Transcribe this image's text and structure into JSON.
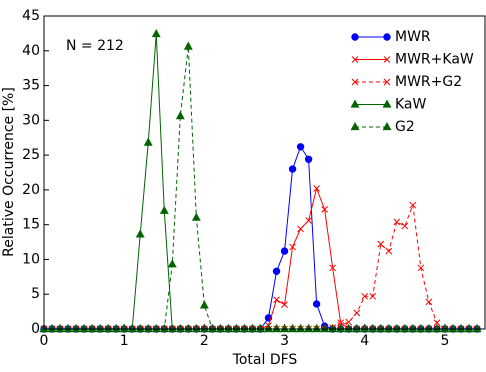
{
  "chart_data": {
    "type": "line",
    "xlabel": "Total DFS",
    "ylabel": "Relative Occurrence [%]",
    "annotation": "N = 212",
    "xlim": [
      0,
      5.5
    ],
    "ylim": [
      0,
      45
    ],
    "xticks": [
      0,
      1,
      2,
      3,
      4,
      5
    ],
    "yticks": [
      0,
      5,
      10,
      15,
      20,
      25,
      30,
      35,
      40,
      45
    ],
    "grid": false,
    "legend": "upper right",
    "x": [
      0,
      0.1,
      0.2,
      0.3,
      0.4,
      0.5,
      0.6,
      0.7,
      0.8,
      0.9,
      1,
      1.1,
      1.2,
      1.3,
      1.4,
      1.5,
      1.6,
      1.7,
      1.8,
      1.9,
      2,
      2.1,
      2.2,
      2.3,
      2.4,
      2.5,
      2.6,
      2.7,
      2.8,
      2.9,
      3,
      3.1,
      3.2,
      3.3,
      3.4,
      3.5,
      3.6,
      3.7,
      3.8,
      3.9,
      4,
      4.1,
      4.2,
      4.3,
      4.4,
      4.5,
      4.6,
      4.7,
      4.8,
      4.9,
      5,
      5.1,
      5.2,
      5.3,
      5.4
    ],
    "series": [
      {
        "name": "MWR",
        "color": "#0000ff",
        "marker": "circle",
        "dashed": false,
        "values": [
          0,
          0,
          0,
          0,
          0,
          0,
          0,
          0,
          0,
          0,
          0,
          0,
          0,
          0,
          0,
          0,
          0,
          0,
          0,
          0,
          0,
          0,
          0,
          0,
          0,
          0,
          0,
          0,
          1.6,
          8.3,
          11.2,
          23,
          26.2,
          24.4,
          3.6,
          0.4,
          0,
          0,
          0,
          0,
          0,
          0,
          0,
          0,
          0,
          0,
          0,
          0,
          0,
          0,
          0,
          0,
          0,
          0,
          0
        ]
      },
      {
        "name": "MWR+KaW",
        "color": "#ff0000",
        "marker": "x",
        "dashed": false,
        "values": [
          0,
          0,
          0,
          0,
          0,
          0,
          0,
          0,
          0,
          0,
          0,
          0,
          0,
          0,
          0,
          0,
          0,
          0,
          0,
          0,
          0,
          0,
          0,
          0,
          0,
          0,
          0,
          0,
          0.5,
          4.2,
          3.5,
          11.8,
          14.4,
          15.6,
          20.2,
          17.2,
          8.8,
          0.9,
          0,
          0,
          0,
          0,
          0,
          0,
          0,
          0,
          0,
          0,
          0,
          0,
          0,
          0,
          0,
          0,
          0
        ]
      },
      {
        "name": "MWR+G2",
        "color": "#ff0000",
        "marker": "x",
        "dashed": true,
        "values": [
          0,
          0,
          0,
          0,
          0,
          0,
          0,
          0,
          0,
          0,
          0,
          0,
          0,
          0,
          0,
          0,
          0,
          0,
          0,
          0,
          0,
          0,
          0,
          0,
          0,
          0,
          0,
          0,
          0,
          0,
          0,
          0,
          0,
          0,
          0,
          0,
          0.2,
          0.5,
          1.0,
          2.3,
          4.7,
          4.7,
          12.2,
          11.2,
          15.4,
          14.8,
          17.8,
          8.8,
          3.9,
          0.9,
          0,
          0,
          0,
          0,
          0
        ]
      },
      {
        "name": "KaW",
        "color": "#006400",
        "marker": "triangle",
        "dashed": false,
        "values": [
          0,
          0,
          0,
          0,
          0,
          0,
          0,
          0,
          0,
          0,
          0,
          0,
          13.6,
          26.8,
          42.4,
          17.0,
          0,
          0,
          0,
          0,
          0,
          0,
          0,
          0,
          0,
          0,
          0,
          0,
          0,
          0,
          0,
          0,
          0,
          0,
          0,
          0,
          0,
          0,
          0,
          0,
          0,
          0,
          0,
          0,
          0,
          0,
          0,
          0,
          0,
          0,
          0,
          0,
          0,
          0,
          0
        ]
      },
      {
        "name": "G2",
        "color": "#006400",
        "marker": "triangle",
        "dashed": true,
        "values": [
          0,
          0,
          0,
          0,
          0,
          0,
          0,
          0,
          0,
          0,
          0,
          0,
          0,
          0,
          0,
          0,
          9.3,
          30.6,
          40.6,
          16.0,
          3.4,
          0,
          0,
          0,
          0,
          0,
          0,
          0,
          0,
          0,
          0,
          0,
          0,
          0,
          0,
          0,
          0,
          0,
          0,
          0,
          0,
          0,
          0,
          0,
          0,
          0,
          0,
          0,
          0,
          0,
          0,
          0,
          0,
          0,
          0
        ]
      }
    ]
  }
}
